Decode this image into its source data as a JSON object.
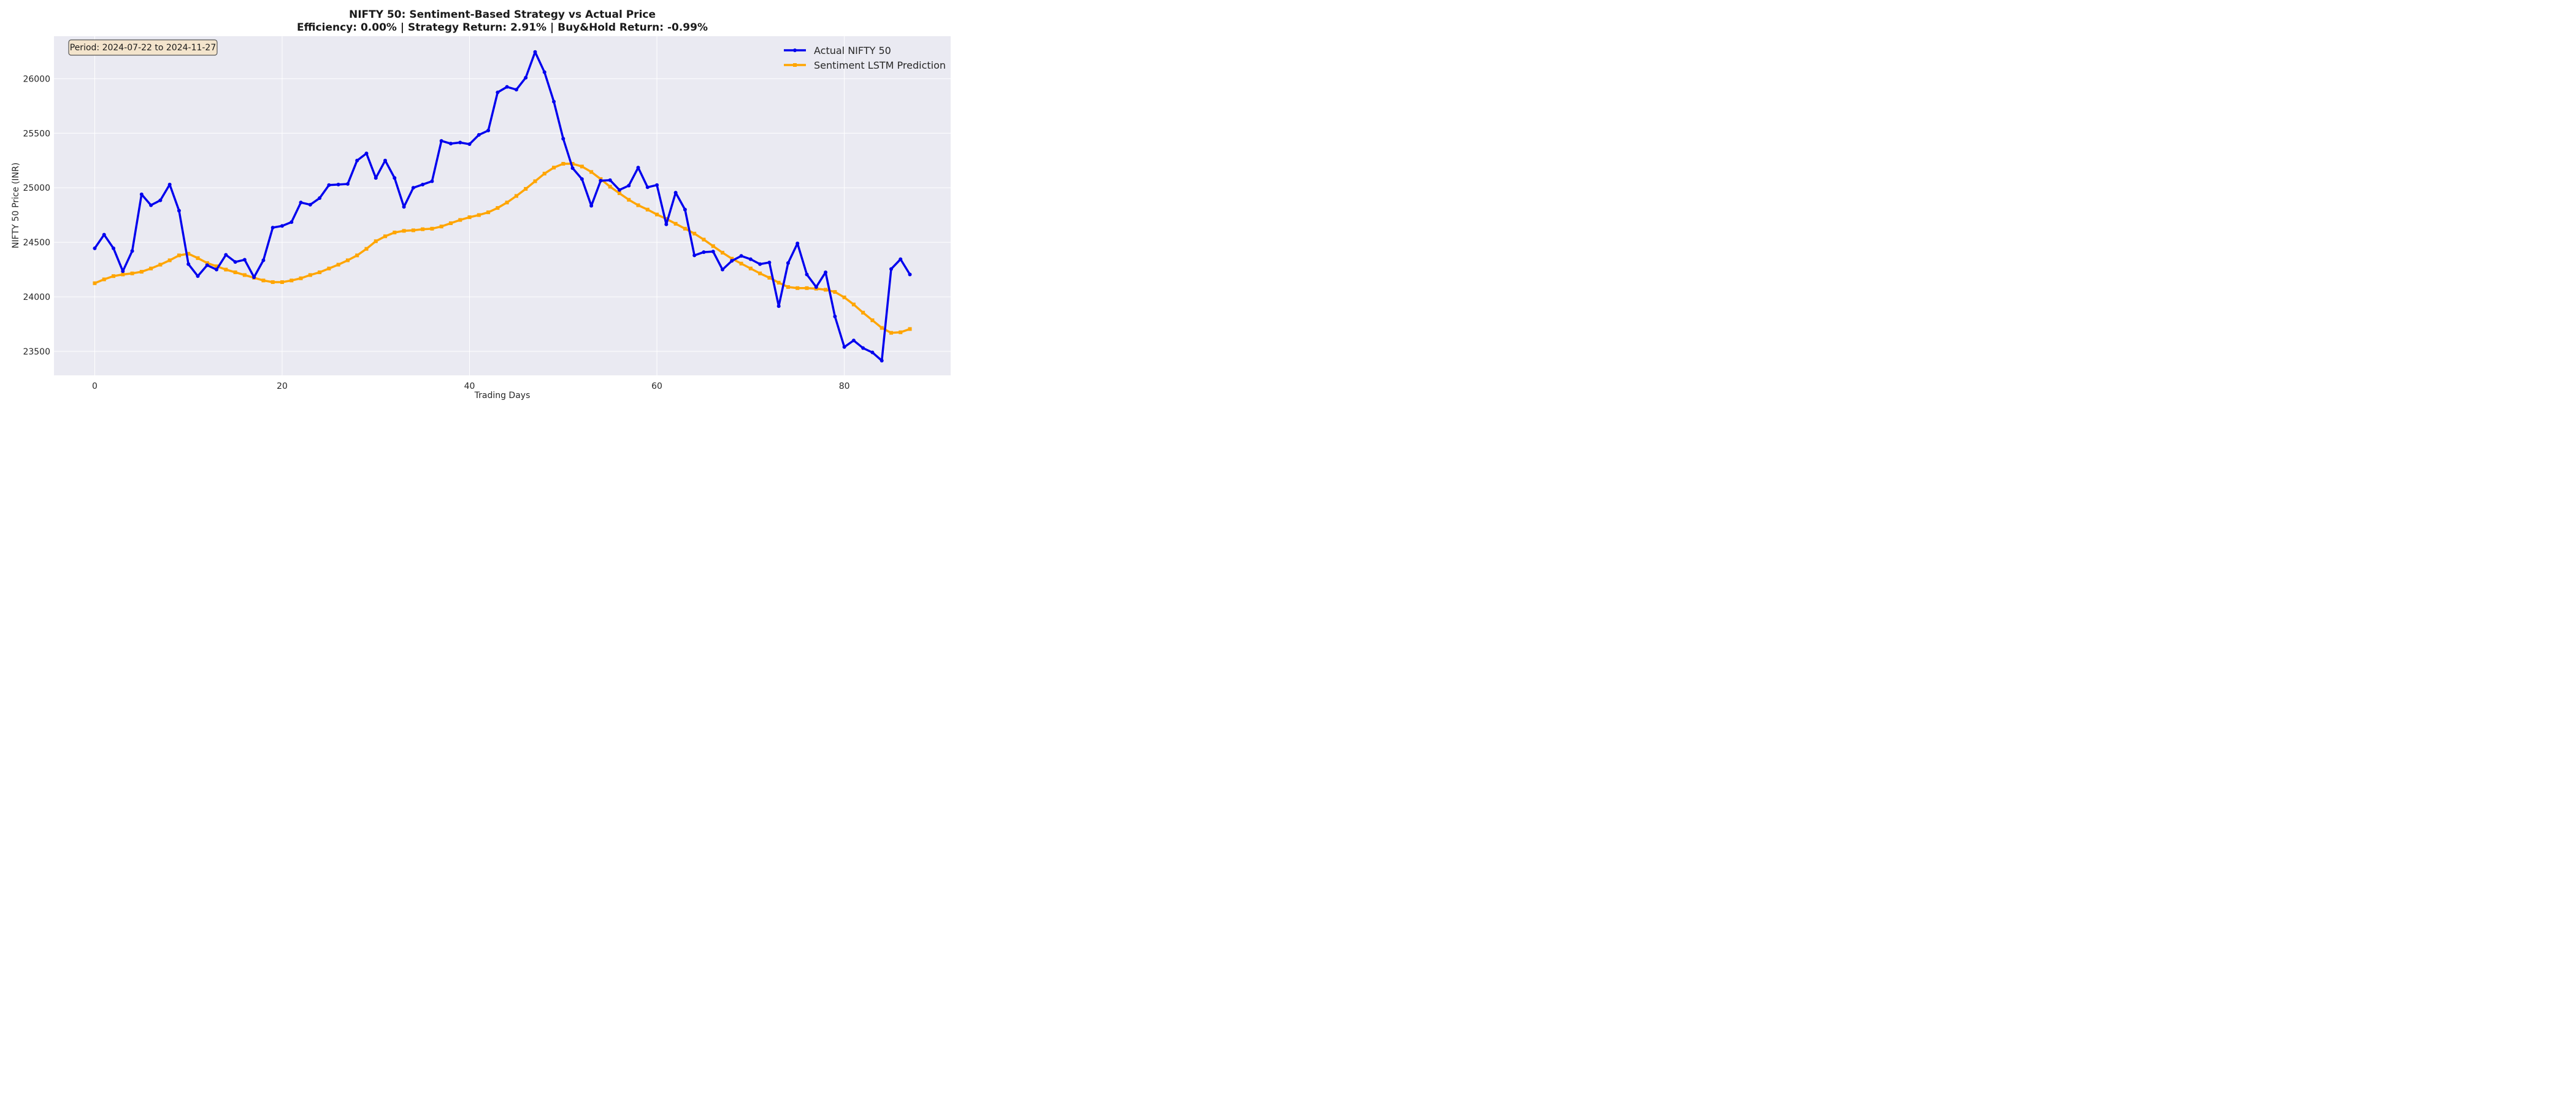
{
  "chart_data": {
    "type": "line",
    "title": "NIFTY 50: Sentiment-Based Strategy vs Actual Price",
    "subtitle": "Efficiency: 0.00% | Strategy Return: 2.91% | Buy&Hold Return: -0.99%",
    "xlabel": "Trading Days",
    "ylabel": "NIFTY 50 Price (INR)",
    "xlim": [
      -4.35,
      91.35
    ],
    "ylim": [
      23280,
      26390
    ],
    "xticks": [
      0,
      20,
      40,
      60,
      80
    ],
    "yticks": [
      23500,
      24000,
      24500,
      25000,
      25500,
      26000
    ],
    "grid": true,
    "legend_position": "top-right",
    "annotation": "Period: 2024-07-22 to 2024-11-27",
    "series": [
      {
        "name": "Actual NIFTY 50",
        "color": "#0000ee",
        "marker": "circle",
        "x": [
          0,
          1,
          2,
          3,
          4,
          5,
          6,
          7,
          8,
          9,
          10,
          11,
          12,
          13,
          14,
          15,
          16,
          17,
          18,
          19,
          20,
          21,
          22,
          23,
          24,
          25,
          26,
          27,
          28,
          29,
          30,
          31,
          32,
          33,
          34,
          35,
          36,
          37,
          38,
          39,
          40,
          41,
          42,
          43,
          44,
          45,
          46,
          47,
          48,
          49,
          50,
          51,
          52,
          53,
          54,
          55,
          56,
          57,
          58,
          59,
          60,
          61,
          62,
          63,
          64,
          65,
          66,
          67,
          68,
          69,
          70,
          71,
          72,
          73,
          74,
          75,
          76,
          77,
          78,
          79,
          80,
          81,
          82,
          83,
          84,
          85,
          86,
          87
        ],
        "values": [
          24445,
          24570,
          24445,
          24235,
          24420,
          24940,
          24840,
          24885,
          25030,
          24790,
          24300,
          24190,
          24290,
          24250,
          24385,
          24320,
          24340,
          24180,
          24335,
          24635,
          24650,
          24685,
          24865,
          24845,
          24905,
          25025,
          25030,
          25035,
          25250,
          25315,
          25090,
          25250,
          25090,
          24825,
          25000,
          25030,
          25060,
          25430,
          25405,
          25415,
          25400,
          25485,
          25525,
          25875,
          25925,
          25900,
          26010,
          26245,
          26060,
          25790,
          25450,
          25180,
          25080,
          24835,
          25065,
          25070,
          24980,
          25020,
          25185,
          25005,
          25025,
          24665,
          24955,
          24800,
          24380,
          24410,
          24415,
          24250,
          24330,
          24375,
          24345,
          24300,
          24315,
          23915,
          24310,
          24490,
          24205,
          24090,
          24225,
          23820,
          23540,
          23600,
          23530,
          23490,
          23415,
          24255,
          24345,
          24205
        ]
      },
      {
        "name": "Sentiment LSTM Prediction",
        "color": "#ffa500",
        "marker": "square",
        "x": [
          0,
          1,
          2,
          3,
          4,
          5,
          6,
          7,
          8,
          9,
          10,
          11,
          12,
          13,
          14,
          15,
          16,
          17,
          18,
          19,
          20,
          21,
          22,
          23,
          24,
          25,
          26,
          27,
          28,
          29,
          30,
          31,
          32,
          33,
          34,
          35,
          36,
          37,
          38,
          39,
          40,
          41,
          42,
          43,
          44,
          45,
          46,
          47,
          48,
          49,
          50,
          51,
          52,
          53,
          54,
          55,
          56,
          57,
          58,
          59,
          60,
          61,
          62,
          63,
          64,
          65,
          66,
          67,
          68,
          69,
          70,
          71,
          72,
          73,
          74,
          75,
          76,
          77,
          78,
          79,
          80,
          81,
          82,
          83,
          84,
          85,
          86,
          87
        ],
        "values": [
          24125,
          24160,
          24190,
          24205,
          24215,
          24230,
          24260,
          24295,
          24335,
          24380,
          24395,
          24355,
          24310,
          24280,
          24250,
          24225,
          24200,
          24175,
          24150,
          24135,
          24135,
          24150,
          24170,
          24200,
          24225,
          24260,
          24295,
          24335,
          24380,
          24440,
          24510,
          24555,
          24590,
          24605,
          24610,
          24620,
          24625,
          24645,
          24675,
          24705,
          24730,
          24750,
          24775,
          24815,
          24865,
          24925,
          24990,
          25060,
          25130,
          25185,
          25220,
          25220,
          25195,
          25145,
          25080,
          25010,
          24950,
          24890,
          24840,
          24800,
          24755,
          24715,
          24670,
          24625,
          24580,
          24525,
          24465,
          24405,
          24350,
          24305,
          24260,
          24215,
          24175,
          24130,
          24090,
          24080,
          24080,
          24075,
          24065,
          24045,
          23995,
          23930,
          23855,
          23785,
          23715,
          23670,
          23675,
          23705
        ]
      }
    ]
  }
}
